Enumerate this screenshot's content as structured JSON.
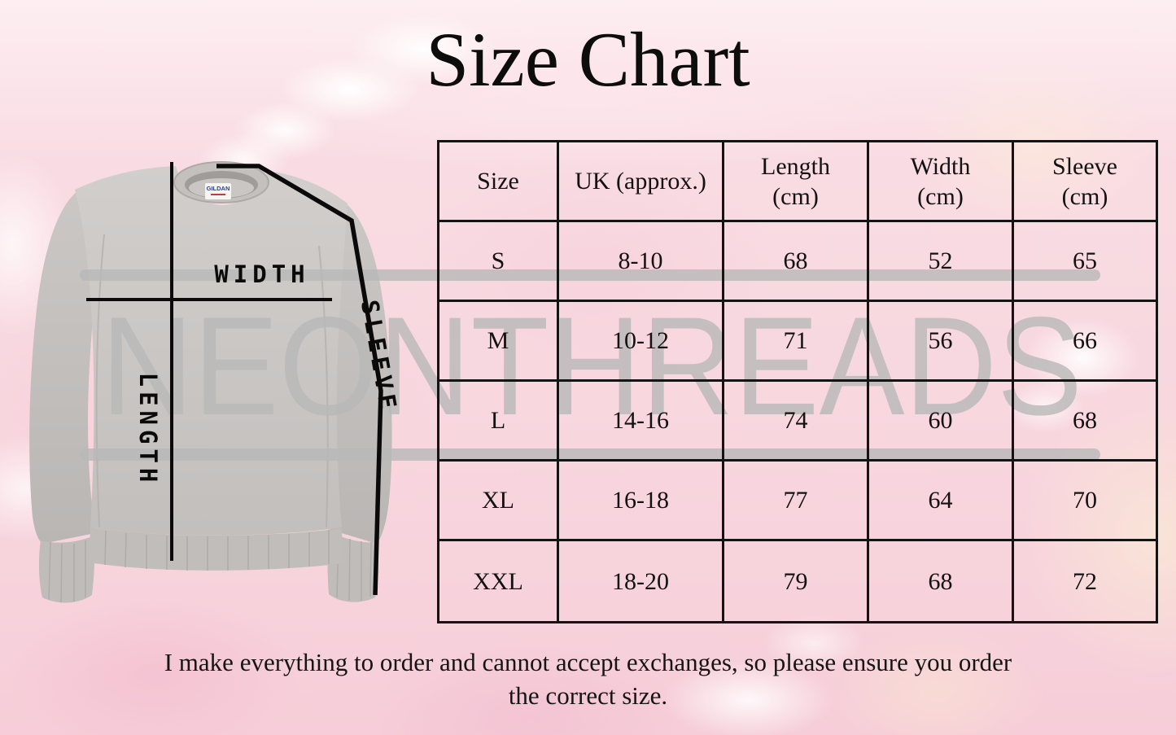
{
  "title": "Size Chart",
  "watermark": {
    "text": "NEONTHREADS"
  },
  "garment": {
    "name": "grey crewneck sweatshirt",
    "brand_tag": "GILDAN",
    "measure_labels": {
      "width": "WIDTH",
      "length": "LENGTH",
      "sleeve": "SLEEVE"
    }
  },
  "chart_data": {
    "type": "table",
    "title": "Size Chart",
    "columns": [
      {
        "label": "Size",
        "unit": ""
      },
      {
        "label": "UK (approx.)",
        "unit": ""
      },
      {
        "label": "Length",
        "unit": "(cm)"
      },
      {
        "label": "Width",
        "unit": "(cm)"
      },
      {
        "label": "Sleeve",
        "unit": "(cm)"
      }
    ],
    "rows": [
      [
        "S",
        "8-10",
        "68",
        "52",
        "65"
      ],
      [
        "M",
        "10-12",
        "71",
        "56",
        "66"
      ],
      [
        "L",
        "14-16",
        "74",
        "60",
        "68"
      ],
      [
        "XL",
        "16-18",
        "77",
        "64",
        "70"
      ],
      [
        "XXL",
        "18-20",
        "79",
        "68",
        "72"
      ]
    ]
  },
  "footer": {
    "line1": "I make everything to order and cannot accept exchanges, so please ensure you order",
    "line2": "the correct size."
  },
  "colors": {
    "background_pink": "#f8d9e0",
    "accent_pink": "#f4c0d1",
    "peach": "#fbe7d5",
    "watermark_gray": "#b9b9b9",
    "table_border": "#141414",
    "text_black": "#121212",
    "sweatshirt_gray": "#c8c5c3",
    "brand_tag_blue": "#27439b"
  }
}
